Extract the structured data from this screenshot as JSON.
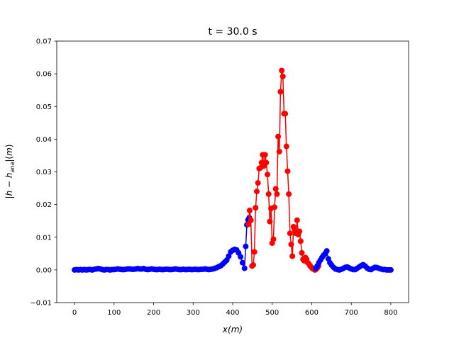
{
  "chart_data": {
    "type": "line",
    "title": "t = 30.0 s",
    "xlabel": "x(m)",
    "ylabel": "|h − h_ana|(m)",
    "xlim": [
      -45,
      845
    ],
    "ylim": [
      -0.01,
      0.07
    ],
    "x_ticks": [
      0,
      100,
      200,
      300,
      400,
      500,
      600,
      700,
      800
    ],
    "x_tick_labels": [
      "0",
      "100",
      "200",
      "300",
      "400",
      "500",
      "600",
      "700",
      "800"
    ],
    "y_ticks": [
      -0.01,
      0.0,
      0.01,
      0.02,
      0.03,
      0.04,
      0.05,
      0.06,
      0.07
    ],
    "y_tick_labels": [
      "−0.01",
      "0.00",
      "0.01",
      "0.02",
      "0.03",
      "0.04",
      "0.05",
      "0.06",
      "0.07"
    ],
    "grid": false,
    "legend": "none",
    "series": [
      {
        "color": "#0000ff",
        "marker": "o",
        "x": [
          0,
          5,
          10,
          15,
          20,
          25,
          30,
          35,
          40,
          45,
          50,
          55,
          60,
          65,
          70,
          75,
          80,
          85,
          90,
          95,
          100,
          105,
          110,
          115,
          120,
          125,
          130,
          135,
          140,
          145,
          150,
          155,
          160,
          165,
          170,
          175,
          180,
          185,
          190,
          195,
          200,
          205,
          210,
          215,
          220,
          225,
          230,
          235,
          240,
          245,
          250,
          255,
          260,
          265,
          270,
          275,
          280,
          285,
          290,
          295,
          300,
          305,
          310,
          315,
          320,
          325,
          330,
          335,
          340,
          345,
          350,
          355,
          360,
          365,
          370,
          375,
          380,
          385,
          390,
          395,
          400,
          405,
          410,
          415,
          420,
          425,
          430,
          433,
          436,
          439,
          442
        ],
        "y": [
          0.0,
          0.0001,
          0.0,
          0.0001,
          0.0,
          0.0001,
          0.0,
          0.0001,
          0.0001,
          0.0,
          0.0002,
          0.0003,
          0.0004,
          0.0003,
          0.0001,
          0.0,
          0.0001,
          0.0001,
          0.0,
          0.0001,
          0.0001,
          0.0002,
          0.0003,
          0.0002,
          0.0001,
          0.0001,
          0.0002,
          0.0003,
          0.0003,
          0.0002,
          0.0002,
          0.0003,
          0.0004,
          0.0003,
          0.0003,
          0.0004,
          0.0002,
          0.0001,
          0.0002,
          0.0003,
          0.0002,
          0.0001,
          0.0001,
          0.0002,
          0.0001,
          0.0001,
          0.0002,
          0.0002,
          0.0001,
          0.0001,
          0.0002,
          0.0003,
          0.0002,
          0.0001,
          0.0001,
          0.0002,
          0.0001,
          0.0001,
          0.0002,
          0.0001,
          0.0001,
          0.0002,
          0.0001,
          0.0001,
          0.0002,
          0.0002,
          0.0003,
          0.0002,
          0.0001,
          0.0002,
          0.0003,
          0.0005,
          0.0007,
          0.001,
          0.0013,
          0.0018,
          0.0024,
          0.003,
          0.0042,
          0.0055,
          0.006,
          0.0063,
          0.0061,
          0.0052,
          0.004,
          0.0022,
          0.0005,
          0.0072,
          0.0138,
          0.0153,
          0.016
        ]
      },
      {
        "color": "#ff0000",
        "marker": "o",
        "x": [
          440,
          443,
          446,
          449,
          452,
          455,
          458,
          461,
          464,
          467,
          470,
          473,
          476,
          479,
          482,
          485,
          488,
          491,
          494,
          497,
          500,
          503,
          506,
          509,
          512,
          515,
          518,
          521,
          524,
          527,
          530,
          533,
          536,
          539,
          542,
          545,
          548,
          551,
          554,
          557,
          560,
          563,
          566,
          569,
          572,
          575,
          578,
          581,
          584,
          587,
          590,
          593,
          596,
          599,
          602,
          605,
          608,
          611,
          614,
          617
        ],
        "y": [
          0.014,
          0.0182,
          0.0152,
          0.0012,
          0.0015,
          0.0055,
          0.019,
          0.024,
          0.0266,
          0.031,
          0.0312,
          0.0328,
          0.0352,
          0.0318,
          0.0352,
          0.0328,
          0.0292,
          0.0232,
          0.0148,
          0.0188,
          0.0082,
          0.0094,
          0.0192,
          0.0248,
          0.0232,
          0.0408,
          0.0362,
          0.0545,
          0.061,
          0.0592,
          0.0478,
          0.0478,
          0.0378,
          0.0302,
          0.0232,
          0.0112,
          0.0078,
          0.0042,
          0.0132,
          0.0122,
          0.0112,
          0.0152,
          0.0108,
          0.0118,
          0.0088,
          0.0052,
          0.0032,
          0.0028,
          0.0038,
          0.0032,
          0.0022,
          0.0018,
          0.0012,
          0.0008,
          0.0004,
          0.0002,
          0.0,
          0.0002,
          0.0006,
          0.0012
        ]
      },
      {
        "color": "#0000ff",
        "marker": "o",
        "x": [
          610,
          614,
          618,
          622,
          626,
          630,
          634,
          638,
          642,
          646,
          650,
          655,
          660,
          665,
          670,
          675,
          680,
          685,
          690,
          695,
          700,
          705,
          710,
          715,
          720,
          725,
          730,
          735,
          740,
          745,
          750,
          755,
          760,
          765,
          770,
          775,
          780,
          785,
          790,
          795,
          800
        ],
        "y": [
          0.0005,
          0.0012,
          0.0022,
          0.003,
          0.0038,
          0.0045,
          0.005,
          0.0058,
          0.0034,
          0.0022,
          0.0015,
          0.0008,
          0.0003,
          0.0001,
          0.0,
          0.0002,
          0.0005,
          0.0008,
          0.0009,
          0.0006,
          0.0003,
          0.0001,
          0.0001,
          0.0005,
          0.0009,
          0.0013,
          0.0016,
          0.0012,
          0.0006,
          0.0002,
          0.0001,
          0.0005,
          0.0008,
          0.0007,
          0.0005,
          0.0003,
          0.0001,
          0.0001,
          0.0,
          0.0,
          0.0
        ]
      }
    ]
  }
}
